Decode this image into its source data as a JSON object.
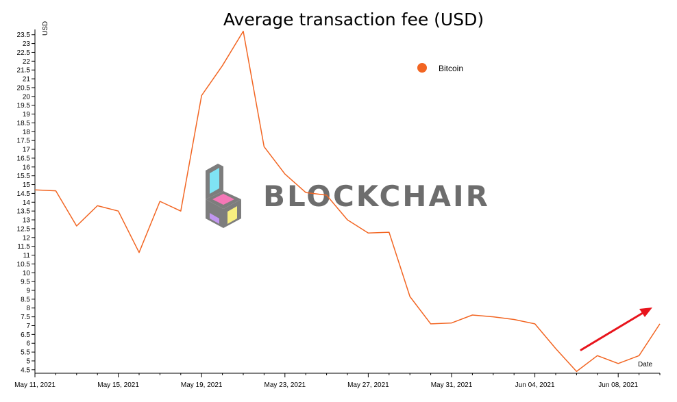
{
  "colors": {
    "series": "#f26522",
    "arrow": "#e8141c",
    "axis": "#000000",
    "watermark_text": "#6d6d6d"
  },
  "watermark": {
    "text": "BLOCKCHAIR",
    "icon": "blockchair-logo-icon"
  },
  "chart_data": {
    "type": "line",
    "title": "Average transaction fee (USD)",
    "ylabel": "USD",
    "xlabel": "Date",
    "ylim": [
      4.3,
      23.8
    ],
    "y_ticks": [
      "4.5",
      "5",
      "5.5",
      "6",
      "6.5",
      "7",
      "7.5",
      "8",
      "8.5",
      "9",
      "9.5",
      "10",
      "10.5",
      "11",
      "11.5",
      "12",
      "12.5",
      "13",
      "13.5",
      "14",
      "14.5",
      "15",
      "15.5",
      "16",
      "16.5",
      "17",
      "17.5",
      "18",
      "18.5",
      "19",
      "19.5",
      "20",
      "20.5",
      "21",
      "21.5",
      "22",
      "22.5",
      "23",
      "23.5"
    ],
    "x_tick_labels": [
      "May 11, 2021",
      "May 15, 2021",
      "May 19, 2021",
      "May 23, 2021",
      "May 27, 2021",
      "May 31, 2021",
      "Jun 04, 2021",
      "Jun 08, 2021"
    ],
    "x_start": "May 11, 2021",
    "x_end": "Jun 10, 2021",
    "grid": false,
    "legend_position": "top-right",
    "series": [
      {
        "name": "Bitcoin",
        "x": [
          "May 11, 2021",
          "May 12, 2021",
          "May 13, 2021",
          "May 14, 2021",
          "May 15, 2021",
          "May 16, 2021",
          "May 17, 2021",
          "May 18, 2021",
          "May 19, 2021",
          "May 20, 2021",
          "May 21, 2021",
          "May 22, 2021",
          "May 23, 2021",
          "May 24, 2021",
          "May 25, 2021",
          "May 26, 2021",
          "May 27, 2021",
          "May 28, 2021",
          "May 29, 2021",
          "May 30, 2021",
          "May 31, 2021",
          "Jun 01, 2021",
          "Jun 02, 2021",
          "Jun 03, 2021",
          "Jun 04, 2021",
          "Jun 05, 2021",
          "Jun 06, 2021",
          "Jun 07, 2021",
          "Jun 08, 2021",
          "Jun 09, 2021",
          "Jun 10, 2021"
        ],
        "values": [
          14.7,
          14.65,
          12.65,
          13.8,
          13.5,
          11.15,
          14.05,
          13.5,
          20.05,
          21.75,
          23.7,
          17.15,
          15.6,
          14.55,
          14.4,
          13.0,
          12.25,
          12.3,
          8.65,
          7.1,
          7.15,
          7.6,
          7.5,
          7.35,
          7.1,
          5.7,
          4.4,
          5.3,
          4.85,
          5.3,
          7.1
        ]
      }
    ]
  }
}
